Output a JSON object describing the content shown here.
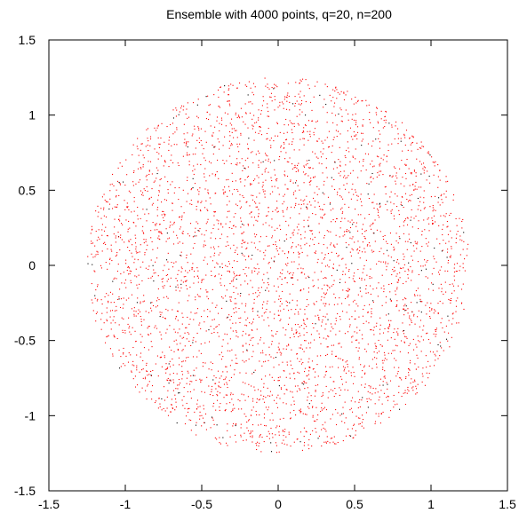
{
  "chart_data": {
    "type": "scatter",
    "title": "Ensemble with 4000 points, q=20, n=200",
    "xlabel": "",
    "ylabel": "",
    "xlim": [
      -1.5,
      1.5
    ],
    "ylim": [
      -1.5,
      1.5
    ],
    "x_ticks": [
      "-1.5",
      "-1",
      "-0.5",
      "0",
      "0.5",
      "1",
      "1.5"
    ],
    "y_ticks": [
      "-1.5",
      "-1",
      "-0.5",
      "0",
      "0.5",
      "1",
      "1.5"
    ],
    "grid": false,
    "legend": "none",
    "point_color": "#ff0000",
    "dark_point_color": "#000000",
    "point_count": 4000,
    "distribution": {
      "shape": "disk",
      "center": [
        0.0,
        0.0
      ],
      "radius": 1.25
    }
  }
}
